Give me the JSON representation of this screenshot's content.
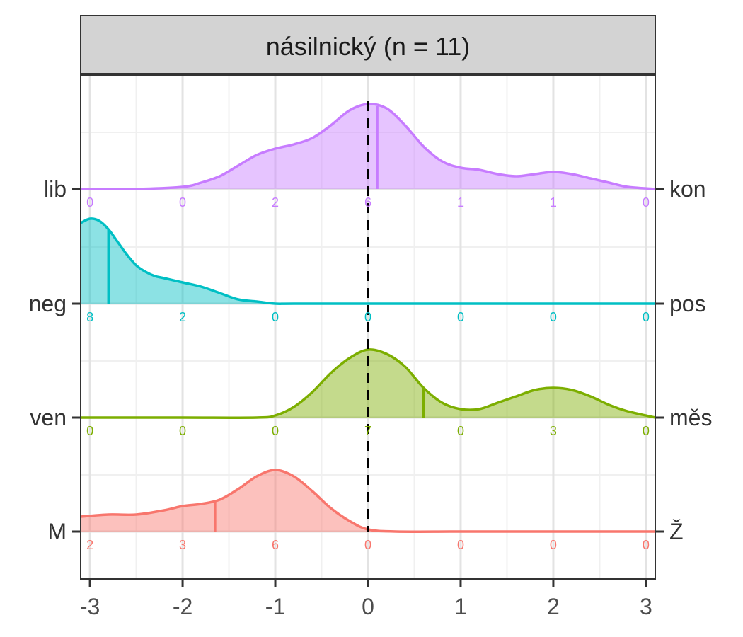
{
  "chart_data": {
    "type": "ridgeline",
    "title": "násilnický (n = 11)",
    "xlim": [
      -3.1,
      3.1
    ],
    "x_ticks": [
      -3,
      -2,
      -1,
      0,
      1,
      2,
      3
    ],
    "x_tick_labels": [
      "-3",
      "-2",
      "-1",
      "0",
      "1",
      "2",
      "3"
    ],
    "x_minor_grid": [
      -2.5,
      -1.5,
      -0.5,
      0.5,
      1.5,
      2.5
    ],
    "reference_line_x": 0,
    "grid": true,
    "series": [
      {
        "left_label": "M",
        "right_label": "Ž",
        "color": "#F8766D",
        "median": -1.65,
        "count_positions": [
          -3,
          -2,
          -1,
          0,
          1,
          2,
          3
        ],
        "counts": [
          "2",
          "3",
          "6",
          "0",
          "0",
          "0",
          "0"
        ],
        "density": {
          "x": [
            -3.1,
            -2.8,
            -2.5,
            -2.2,
            -2.0,
            -1.8,
            -1.6,
            -1.4,
            -1.2,
            -1.0,
            -0.8,
            -0.6,
            -0.4,
            -0.2,
            0.0,
            0.3,
            1.0,
            2.0,
            3.1
          ],
          "y": [
            0.07,
            0.08,
            0.08,
            0.1,
            0.12,
            0.13,
            0.15,
            0.2,
            0.26,
            0.29,
            0.26,
            0.19,
            0.11,
            0.05,
            0.01,
            0.0,
            0.0,
            0.0,
            0.0
          ]
        }
      },
      {
        "left_label": "ven",
        "right_label": "měs",
        "color": "#7CAE00",
        "median": 0.6,
        "count_positions": [
          -3,
          -2,
          -1,
          0,
          1,
          2,
          3
        ],
        "counts": [
          "0",
          "0",
          "0",
          "7",
          "0",
          "3",
          "0"
        ],
        "density": {
          "x": [
            -3.1,
            -2.0,
            -1.2,
            -1.0,
            -0.8,
            -0.6,
            -0.4,
            -0.2,
            0.0,
            0.2,
            0.4,
            0.6,
            0.8,
            1.0,
            1.2,
            1.4,
            1.6,
            1.8,
            2.0,
            2.2,
            2.4,
            2.6,
            2.8,
            3.1
          ],
          "y": [
            0.0,
            0.0,
            0.0,
            0.01,
            0.05,
            0.12,
            0.21,
            0.28,
            0.32,
            0.3,
            0.24,
            0.14,
            0.07,
            0.04,
            0.04,
            0.07,
            0.1,
            0.13,
            0.14,
            0.13,
            0.1,
            0.06,
            0.03,
            0.0
          ]
        }
      },
      {
        "left_label": "neg",
        "right_label": "pos",
        "color": "#00BFC4",
        "median": -2.8,
        "count_positions": [
          -3,
          -2,
          -1,
          0,
          1,
          2,
          3
        ],
        "counts": [
          "8",
          "2",
          "0",
          "0",
          "0",
          "0",
          "0"
        ],
        "density": {
          "x": [
            -3.1,
            -3.0,
            -2.9,
            -2.8,
            -2.7,
            -2.6,
            -2.5,
            -2.4,
            -2.3,
            -2.2,
            -2.0,
            -1.8,
            -1.6,
            -1.4,
            -1.2,
            -1.0,
            -0.8,
            0.0,
            1.0,
            2.0,
            3.1
          ],
          "y": [
            0.38,
            0.4,
            0.39,
            0.35,
            0.29,
            0.23,
            0.18,
            0.15,
            0.13,
            0.12,
            0.1,
            0.08,
            0.05,
            0.02,
            0.01,
            0.0,
            0.0,
            0.0,
            0.0,
            0.0,
            0.0
          ]
        }
      },
      {
        "left_label": "lib",
        "right_label": "kon",
        "color": "#C77CFF",
        "median": 0.1,
        "count_positions": [
          -3,
          -2,
          -1,
          0,
          1,
          2,
          3
        ],
        "counts": [
          "0",
          "0",
          "2",
          "6",
          "1",
          "1",
          "0"
        ],
        "density": {
          "x": [
            -3.1,
            -2.5,
            -2.0,
            -1.8,
            -1.6,
            -1.4,
            -1.2,
            -1.0,
            -0.8,
            -0.6,
            -0.4,
            -0.2,
            0.0,
            0.2,
            0.4,
            0.6,
            0.8,
            1.0,
            1.2,
            1.4,
            1.6,
            1.8,
            2.0,
            2.2,
            2.4,
            2.6,
            2.8,
            3.1
          ],
          "y": [
            0.0,
            0.0,
            0.01,
            0.03,
            0.06,
            0.11,
            0.16,
            0.19,
            0.21,
            0.24,
            0.3,
            0.37,
            0.4,
            0.38,
            0.3,
            0.2,
            0.13,
            0.1,
            0.09,
            0.07,
            0.06,
            0.07,
            0.08,
            0.07,
            0.05,
            0.03,
            0.01,
            0.0
          ]
        }
      }
    ]
  }
}
